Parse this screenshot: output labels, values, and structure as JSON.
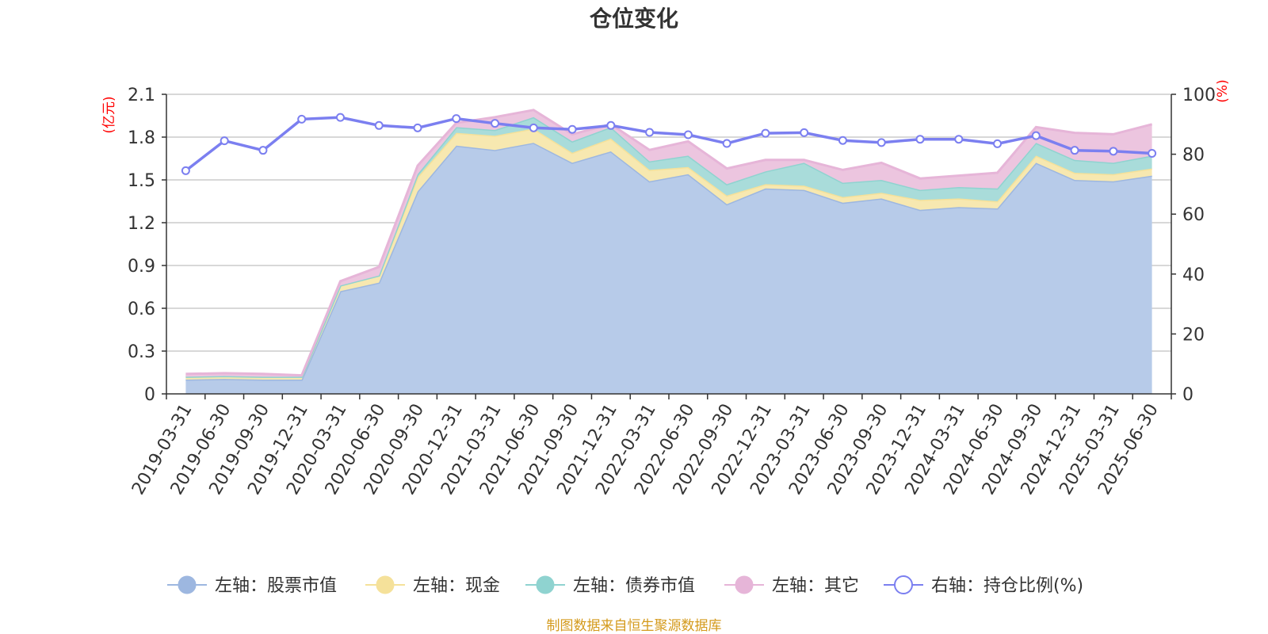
{
  "chart_data": {
    "type": "area",
    "title": "仓位变化",
    "left_unit": "(亿元)",
    "right_unit": "(%)",
    "source": "制图数据来自恒生聚源数据库",
    "categories": [
      "2019-03-31",
      "2019-06-30",
      "2019-09-30",
      "2019-12-31",
      "2020-03-31",
      "2020-06-30",
      "2020-09-30",
      "2020-12-31",
      "2021-03-31",
      "2021-06-30",
      "2021-09-30",
      "2021-12-31",
      "2022-03-31",
      "2022-06-30",
      "2022-09-30",
      "2022-12-31",
      "2023-03-31",
      "2023-06-30",
      "2023-09-30",
      "2023-12-31",
      "2024-03-31",
      "2024-06-30",
      "2024-09-30",
      "2024-12-31",
      "2025-03-31",
      "2025-06-30"
    ],
    "left_axis": {
      "min": 0,
      "max": 2.1,
      "ticks": [
        "0",
        "0.3",
        "0.6",
        "0.9",
        "1.2",
        "1.5",
        "1.8",
        "2.1"
      ]
    },
    "right_axis": {
      "min": 0,
      "max": 100,
      "ticks": [
        "0",
        "20",
        "40",
        "60",
        "80",
        "100"
      ]
    },
    "grid": true,
    "legend_position": "bottom",
    "series": [
      {
        "name": "左轴：股票市值",
        "axis": "left",
        "stack": true,
        "color": "#9db7e0",
        "fill": "#b7cbe9",
        "values": [
          0.1,
          0.105,
          0.1,
          0.1,
          0.72,
          0.78,
          1.42,
          1.74,
          1.71,
          1.76,
          1.62,
          1.7,
          1.49,
          1.54,
          1.33,
          1.44,
          1.43,
          1.34,
          1.37,
          1.29,
          1.31,
          1.3,
          1.62,
          1.5,
          1.49,
          1.53
        ]
      },
      {
        "name": "左轴：现金",
        "axis": "left",
        "stack": true,
        "color": "#f5e19a",
        "fill": "#f7e8b0",
        "values": [
          0.02,
          0.02,
          0.02,
          0.02,
          0.04,
          0.05,
          0.1,
          0.09,
          0.1,
          0.1,
          0.07,
          0.09,
          0.08,
          0.05,
          0.06,
          0.03,
          0.03,
          0.04,
          0.04,
          0.07,
          0.06,
          0.05,
          0.05,
          0.05,
          0.05,
          0.05
        ]
      },
      {
        "name": "左轴：债券市值",
        "axis": "left",
        "stack": true,
        "color": "#8fd3d0",
        "fill": "#a9dcda",
        "values": [
          0.0,
          0.0,
          0.0,
          0.0,
          0.0,
          0.0,
          0.02,
          0.04,
          0.04,
          0.08,
          0.08,
          0.08,
          0.06,
          0.08,
          0.08,
          0.09,
          0.16,
          0.1,
          0.09,
          0.07,
          0.08,
          0.09,
          0.09,
          0.09,
          0.08,
          0.09
        ]
      },
      {
        "name": "左轴：其它",
        "axis": "left",
        "stack": true,
        "color": "#e6b5d8",
        "fill": "#ecc5df",
        "values": [
          0.02,
          0.02,
          0.02,
          0.01,
          0.03,
          0.06,
          0.06,
          0.03,
          0.09,
          0.05,
          0.05,
          0.02,
          0.08,
          0.1,
          0.11,
          0.08,
          0.02,
          0.09,
          0.12,
          0.08,
          0.08,
          0.11,
          0.11,
          0.19,
          0.2,
          0.22
        ]
      },
      {
        "name": "右轴：持仓比例(%)",
        "axis": "right",
        "type": "line",
        "color": "#7b7ff0",
        "values": [
          74.5,
          84.5,
          81.3,
          91.7,
          92.3,
          89.6,
          88.8,
          91.9,
          90.3,
          88.8,
          88.3,
          89.6,
          87.3,
          86.5,
          83.6,
          87.0,
          87.2,
          84.6,
          83.9,
          85.0,
          85.0,
          83.5,
          86.2,
          81.3,
          81.0,
          80.3
        ]
      }
    ]
  }
}
